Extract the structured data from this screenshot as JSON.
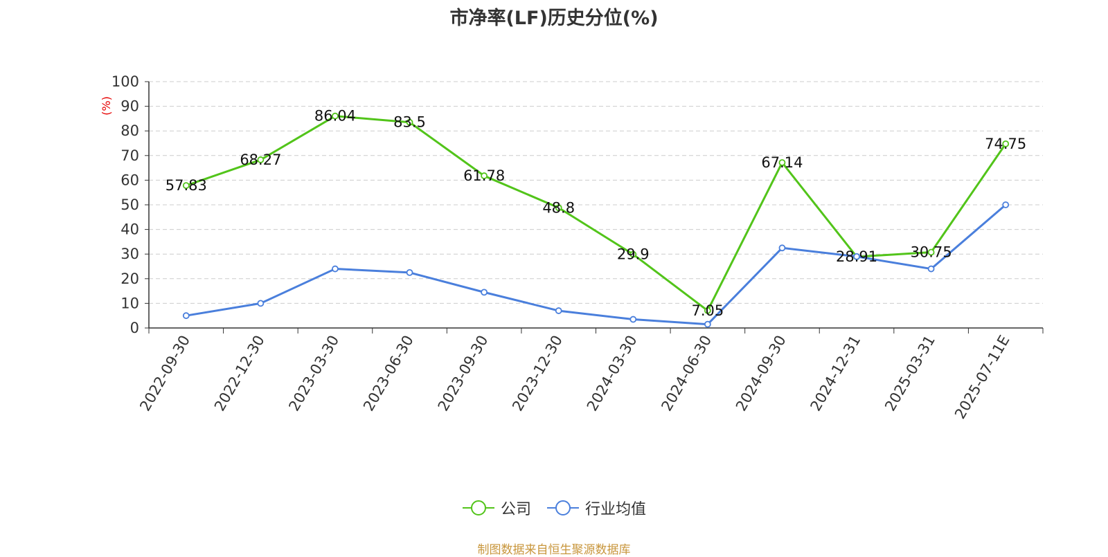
{
  "title": "市净率(LF)历史分位(%)",
  "ylabel": "(%)",
  "source": "制图数据来自恒生聚源数据库",
  "colors": {
    "company": "#52c41a",
    "industry": "#4a7fdc",
    "ylabel": "#e60000",
    "source": "#c8963c"
  },
  "chart_data": {
    "type": "line",
    "title": "市净率(LF)历史分位(%)",
    "ylabel": "(%)",
    "ylim": [
      0,
      100
    ],
    "yticks": [
      "0",
      "10",
      "20",
      "30",
      "40",
      "50",
      "60",
      "70",
      "80",
      "90",
      "100"
    ],
    "grid": true,
    "legend_position": "bottom-center",
    "categories": [
      "2022-09-30",
      "2022-12-30",
      "2023-03-30",
      "2023-06-30",
      "2023-09-30",
      "2023-12-30",
      "2024-03-30",
      "2024-06-30",
      "2024-09-30",
      "2024-12-31",
      "2025-03-31",
      "2025-07-11E"
    ],
    "series": [
      {
        "name": "公司",
        "values": [
          57.83,
          68.27,
          86.04,
          83.5,
          61.78,
          48.8,
          29.9,
          7.05,
          67.14,
          28.91,
          30.75,
          74.75
        ],
        "labels": [
          "57.83",
          "68.27",
          "86.04",
          "83.5",
          "61.78",
          "48.8",
          "29.9",
          "7.05",
          "67.14",
          "28.91",
          "30.75",
          "74.75"
        ]
      },
      {
        "name": "行业均值",
        "values": [
          5,
          10,
          24,
          22.5,
          14.5,
          7,
          3.5,
          1.5,
          32.5,
          29,
          24,
          50
        ]
      }
    ]
  }
}
